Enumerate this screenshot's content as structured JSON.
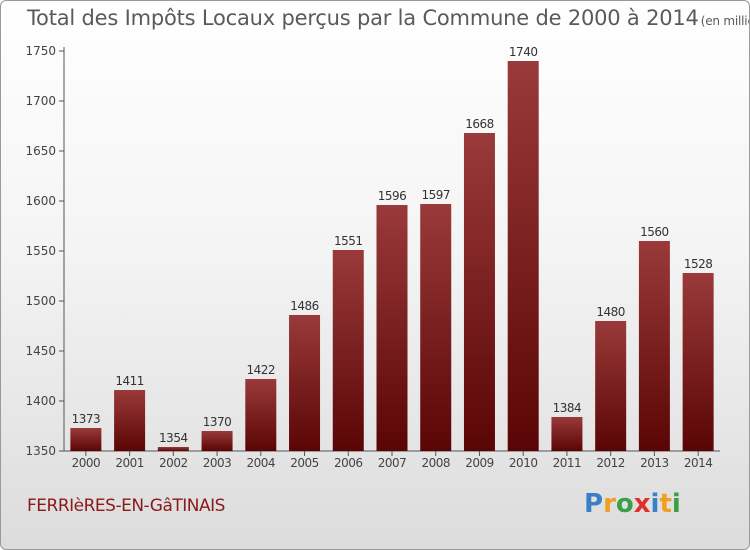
{
  "title": "Total des Impôts Locaux perçus par la Commune de 2000 à 2014",
  "title_unit": "(en milliers d'€)",
  "commune": "FERRIèRES-EN-GâTINAIS",
  "logo": {
    "letters": [
      "P",
      "r",
      "o",
      "x",
      "i",
      "t",
      "i"
    ],
    "colors": [
      "#3a7fc8",
      "#f0a020",
      "#3aa048",
      "#e0302a",
      "#3a7fc8",
      "#f0a020",
      "#3aa048"
    ]
  },
  "colors": {
    "bar_top": "#9a3a3a",
    "bar_bottom": "#5a0505",
    "commune_text": "#8a1a1a"
  },
  "chart_data": {
    "type": "bar",
    "title": "Total des Impôts Locaux perçus par la Commune de 2000 à 2014",
    "xlabel": "",
    "ylabel": "",
    "categories": [
      "2000",
      "2001",
      "2002",
      "2003",
      "2004",
      "2005",
      "2006",
      "2007",
      "2008",
      "2009",
      "2010",
      "2011",
      "2012",
      "2013",
      "2014"
    ],
    "values": [
      1373,
      1411,
      1354,
      1370,
      1422,
      1486,
      1551,
      1596,
      1597,
      1668,
      1740,
      1384,
      1480,
      1560,
      1528
    ],
    "ylim": [
      1350,
      1750
    ],
    "yticks": [
      1350,
      1400,
      1450,
      1500,
      1550,
      1600,
      1650,
      1700,
      1750
    ],
    "grid": false,
    "data_labels": true
  }
}
